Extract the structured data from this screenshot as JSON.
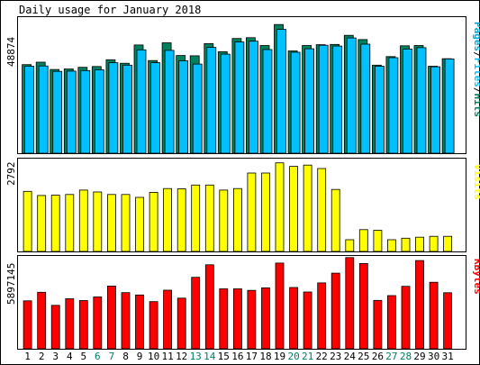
{
  "title": "Daily usage for January 2018",
  "colors": {
    "background": "#ffffff",
    "panel_border": "#000000",
    "hits": "#00805c",
    "files": "#00c0ff",
    "pages": "#00a8d8",
    "visits": "#ffff00",
    "kbytes": "#ff0000",
    "weekday_label": "#000000",
    "weekend_label": "#00805c"
  },
  "chart_data": [
    {
      "type": "bar",
      "panel": "hits-files-pages",
      "ylabel_parts": [
        "Pages",
        "/",
        "Files",
        "/",
        "Hits"
      ],
      "ymax_label": "48874",
      "ymax": 48874,
      "categories": [
        "1",
        "2",
        "3",
        "4",
        "5",
        "6",
        "7",
        "8",
        "9",
        "10",
        "11",
        "12",
        "13",
        "14",
        "15",
        "16",
        "17",
        "18",
        "19",
        "20",
        "21",
        "22",
        "23",
        "24",
        "25",
        "26",
        "27",
        "28",
        "29",
        "30",
        "31"
      ],
      "series": [
        {
          "name": "Hits",
          "values": [
            32900,
            33800,
            31100,
            31300,
            31900,
            32200,
            34700,
            33400,
            40200,
            34400,
            41000,
            36300,
            36200,
            40700,
            37700,
            42600,
            42900,
            40000,
            47800,
            38000,
            40000,
            40300,
            40400,
            43800,
            42200,
            32700,
            35900,
            39900,
            40000,
            32300,
            35100
          ]
        },
        {
          "name": "Files",
          "values": [
            32300,
            32400,
            30400,
            30500,
            30700,
            31000,
            33600,
            32700,
            38400,
            33600,
            38200,
            34300,
            33100,
            39300,
            36800,
            41300,
            41600,
            38500,
            46000,
            37500,
            38800,
            40100,
            39800,
            42800,
            40500,
            32300,
            35500,
            38700,
            39200,
            32100,
            35000
          ]
        }
      ]
    },
    {
      "type": "bar",
      "panel": "visits",
      "ylabel": "Visits",
      "ymax_label": "2792",
      "ymax": 2792,
      "categories": [
        "1",
        "2",
        "3",
        "4",
        "5",
        "6",
        "7",
        "8",
        "9",
        "10",
        "11",
        "12",
        "13",
        "14",
        "15",
        "16",
        "17",
        "18",
        "19",
        "20",
        "21",
        "22",
        "23",
        "24",
        "25",
        "26",
        "27",
        "28",
        "29",
        "30",
        "31"
      ],
      "series": [
        {
          "name": "Visits",
          "values": [
            1900,
            1770,
            1780,
            1800,
            1940,
            1880,
            1800,
            1800,
            1710,
            1870,
            1990,
            1980,
            2100,
            2100,
            1940,
            1990,
            2480,
            2480,
            2800,
            2690,
            2730,
            2620,
            1960,
            370,
            690,
            670,
            370,
            420,
            450,
            480,
            480
          ]
        }
      ]
    },
    {
      "type": "bar",
      "panel": "kbytes",
      "ylabel": "KBytes",
      "ymax_label": "5897145",
      "ymax": 5897145,
      "categories": [
        "1",
        "2",
        "3",
        "4",
        "5",
        "6",
        "7",
        "8",
        "9",
        "10",
        "11",
        "12",
        "13",
        "14",
        "15",
        "16",
        "17",
        "18",
        "19",
        "20",
        "21",
        "22",
        "23",
        "24",
        "25",
        "26",
        "27",
        "28",
        "29",
        "30",
        "31"
      ],
      "series": [
        {
          "name": "KBytes",
          "values": [
            3200000,
            3770000,
            2900000,
            3340000,
            3220000,
            3460000,
            4190000,
            3750000,
            3590000,
            3150000,
            3910000,
            3380000,
            4770000,
            5610000,
            4000000,
            4000000,
            3900000,
            4070000,
            5720000,
            4090000,
            3790000,
            4400000,
            5050000,
            6090000,
            5690000,
            3230000,
            3550000,
            4170000,
            5890000,
            4440000,
            3740000
          ]
        }
      ]
    }
  ],
  "x_labels": [
    {
      "text": "1",
      "weekend": false
    },
    {
      "text": "2",
      "weekend": false
    },
    {
      "text": "3",
      "weekend": false
    },
    {
      "text": "4",
      "weekend": false
    },
    {
      "text": "5",
      "weekend": false
    },
    {
      "text": "6",
      "weekend": true
    },
    {
      "text": "7",
      "weekend": true
    },
    {
      "text": "8",
      "weekend": false
    },
    {
      "text": "9",
      "weekend": false
    },
    {
      "text": "10",
      "weekend": false
    },
    {
      "text": "11",
      "weekend": false
    },
    {
      "text": "12",
      "weekend": false
    },
    {
      "text": "13",
      "weekend": true
    },
    {
      "text": "14",
      "weekend": true
    },
    {
      "text": "15",
      "weekend": false
    },
    {
      "text": "16",
      "weekend": false
    },
    {
      "text": "17",
      "weekend": false
    },
    {
      "text": "18",
      "weekend": false
    },
    {
      "text": "19",
      "weekend": false
    },
    {
      "text": "20",
      "weekend": true
    },
    {
      "text": "21",
      "weekend": true
    },
    {
      "text": "22",
      "weekend": false
    },
    {
      "text": "23",
      "weekend": false
    },
    {
      "text": "24",
      "weekend": false
    },
    {
      "text": "25",
      "weekend": false
    },
    {
      "text": "26",
      "weekend": false
    },
    {
      "text": "27",
      "weekend": true
    },
    {
      "text": "28",
      "weekend": true
    },
    {
      "text": "29",
      "weekend": false
    },
    {
      "text": "30",
      "weekend": false
    },
    {
      "text": "31",
      "weekend": false
    }
  ]
}
